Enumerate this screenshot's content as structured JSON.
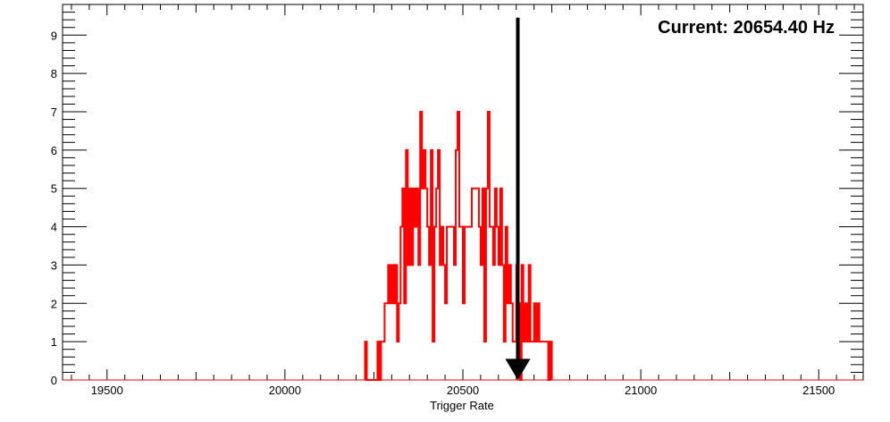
{
  "chart_data": {
    "type": "histogram",
    "title": "",
    "xlabel": "Trigger Rate",
    "ylabel": "",
    "xlim": [
      19375,
      21625
    ],
    "ylim": [
      0,
      9.8
    ],
    "grid": false,
    "x_ticks": [
      19500,
      20000,
      20500,
      21000,
      21500
    ],
    "y_ticks": [
      0,
      1,
      2,
      3,
      4,
      5,
      6,
      7,
      8,
      9
    ],
    "bin_width": 5,
    "bins": [
      [
        20225,
        20230,
        1
      ],
      [
        20230,
        20260,
        0
      ],
      [
        20260,
        20265,
        1
      ],
      [
        20265,
        20270,
        0
      ],
      [
        20270,
        20275,
        1
      ],
      [
        20275,
        20280,
        1
      ],
      [
        20280,
        20285,
        2
      ],
      [
        20285,
        20290,
        2
      ],
      [
        20290,
        20295,
        3
      ],
      [
        20295,
        20300,
        2
      ],
      [
        20300,
        20305,
        3
      ],
      [
        20305,
        20310,
        2
      ],
      [
        20310,
        20315,
        3
      ],
      [
        20315,
        20320,
        1
      ],
      [
        20320,
        20325,
        2
      ],
      [
        20325,
        20330,
        4
      ],
      [
        20330,
        20335,
        5
      ],
      [
        20335,
        20340,
        2
      ],
      [
        20340,
        20345,
        6
      ],
      [
        20345,
        20350,
        3
      ],
      [
        20350,
        20355,
        5
      ],
      [
        20355,
        20360,
        3
      ],
      [
        20360,
        20365,
        5
      ],
      [
        20365,
        20370,
        4
      ],
      [
        20370,
        20375,
        5
      ],
      [
        20375,
        20380,
        3
      ],
      [
        20380,
        20385,
        7
      ],
      [
        20385,
        20390,
        5
      ],
      [
        20390,
        20395,
        6
      ],
      [
        20395,
        20400,
        5
      ],
      [
        20400,
        20405,
        4
      ],
      [
        20405,
        20410,
        3
      ],
      [
        20410,
        20415,
        6
      ],
      [
        20415,
        20420,
        1
      ],
      [
        20420,
        20425,
        4
      ],
      [
        20425,
        20430,
        5
      ],
      [
        20430,
        20435,
        6
      ],
      [
        20435,
        20440,
        3
      ],
      [
        20440,
        20445,
        4
      ],
      [
        20445,
        20450,
        3
      ],
      [
        20450,
        20455,
        2
      ],
      [
        20455,
        20460,
        4
      ],
      [
        20460,
        20465,
        4
      ],
      [
        20465,
        20470,
        4
      ],
      [
        20470,
        20475,
        4
      ],
      [
        20475,
        20480,
        3
      ],
      [
        20480,
        20485,
        6
      ],
      [
        20485,
        20490,
        7
      ],
      [
        20490,
        20495,
        4
      ],
      [
        20495,
        20500,
        4
      ],
      [
        20500,
        20505,
        2
      ],
      [
        20505,
        20510,
        4
      ],
      [
        20510,
        20515,
        4
      ],
      [
        20515,
        20520,
        4
      ],
      [
        20520,
        20525,
        4
      ],
      [
        20525,
        20530,
        5
      ],
      [
        20530,
        20535,
        5
      ],
      [
        20535,
        20540,
        5
      ],
      [
        20540,
        20545,
        5
      ],
      [
        20545,
        20550,
        4
      ],
      [
        20550,
        20555,
        3
      ],
      [
        20555,
        20560,
        5
      ],
      [
        20560,
        20565,
        1
      ],
      [
        20565,
        20570,
        5
      ],
      [
        20570,
        20575,
        7
      ],
      [
        20575,
        20580,
        4
      ],
      [
        20580,
        20585,
        4
      ],
      [
        20585,
        20590,
        3
      ],
      [
        20590,
        20595,
        5
      ],
      [
        20595,
        20600,
        4
      ],
      [
        20600,
        20605,
        3
      ],
      [
        20605,
        20610,
        5
      ],
      [
        20610,
        20615,
        3
      ],
      [
        20615,
        20620,
        1
      ],
      [
        20620,
        20625,
        4
      ],
      [
        20625,
        20630,
        2
      ],
      [
        20630,
        20635,
        3
      ],
      [
        20635,
        20640,
        2
      ],
      [
        20640,
        20645,
        1
      ],
      [
        20645,
        20650,
        1
      ],
      [
        20650,
        20655,
        3
      ],
      [
        20655,
        20660,
        2
      ],
      [
        20660,
        20665,
        0
      ],
      [
        20665,
        20670,
        3
      ],
      [
        20670,
        20675,
        1
      ],
      [
        20675,
        20680,
        2
      ],
      [
        20680,
        20685,
        1
      ],
      [
        20685,
        20690,
        3
      ],
      [
        20690,
        20695,
        1
      ],
      [
        20695,
        20700,
        1
      ],
      [
        20700,
        20705,
        2
      ],
      [
        20705,
        20710,
        1
      ],
      [
        20710,
        20715,
        2
      ],
      [
        20715,
        20720,
        1
      ],
      [
        20720,
        20725,
        1
      ],
      [
        20725,
        20730,
        1
      ],
      [
        20730,
        20740,
        1
      ],
      [
        20740,
        20745,
        0
      ],
      [
        20745,
        20750,
        1
      ]
    ],
    "series": [
      {
        "color": "#ff0000"
      }
    ],
    "annotations": [
      {
        "type": "text",
        "text": "Current: 20654.40 Hz",
        "placement": "top-right",
        "color": "#000000"
      },
      {
        "type": "arrow",
        "x": 20654.4,
        "direction": "down",
        "color": "#000000"
      }
    ]
  }
}
